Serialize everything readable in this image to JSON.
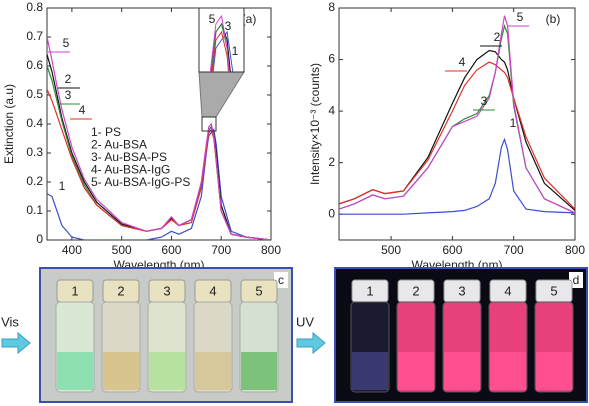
{
  "charts": [
    {
      "type": "line",
      "panel": "(a)",
      "x_label": "Wavelength (nm)",
      "y_label": "Extinction (a.u)",
      "xlim": [
        350,
        800
      ],
      "xticks": [
        400,
        500,
        600,
        700,
        800
      ],
      "ylim": [
        0,
        0.8
      ],
      "yticks": [
        0,
        0.1,
        0.2,
        0.3,
        0.4,
        0.5,
        0.6,
        0.7,
        0.8
      ],
      "x": [
        350,
        360,
        370,
        380,
        400,
        425,
        450,
        500,
        550,
        580,
        600,
        615,
        640,
        660,
        670,
        675,
        680,
        685,
        690,
        700,
        720,
        750,
        800
      ],
      "series": [
        {
          "name": "1- PS",
          "tag": "1",
          "color": "#3a4fd0",
          "values": [
            0.16,
            0.15,
            0.1,
            0.05,
            0.01,
            0,
            0,
            0,
            0,
            0.01,
            0.03,
            0.02,
            0.04,
            0.15,
            0.3,
            0.36,
            0.37,
            0.38,
            0.33,
            0.15,
            0.03,
            0.01,
            0
          ]
        },
        {
          "name": "2- Au-BSA",
          "tag": "2",
          "color": "#111111",
          "values": [
            0.64,
            0.58,
            0.5,
            0.42,
            0.3,
            0.2,
            0.13,
            0.055,
            0.03,
            0.04,
            0.075,
            0.05,
            0.07,
            0.19,
            0.32,
            0.38,
            0.39,
            0.37,
            0.3,
            0.12,
            0.02,
            0.01,
            0
          ]
        },
        {
          "name": "3- Au-BSA-PS",
          "tag": "3",
          "color": "#2e8b3a",
          "values": [
            0.6,
            0.55,
            0.48,
            0.41,
            0.29,
            0.19,
            0.12,
            0.05,
            0.03,
            0.04,
            0.07,
            0.05,
            0.07,
            0.19,
            0.32,
            0.38,
            0.39,
            0.36,
            0.28,
            0.1,
            0.02,
            0.01,
            0
          ]
        },
        {
          "name": "4- Au-BSA-IgG",
          "tag": "4",
          "color": "#e0302a",
          "values": [
            0.52,
            0.48,
            0.43,
            0.38,
            0.28,
            0.18,
            0.12,
            0.05,
            0.03,
            0.04,
            0.07,
            0.05,
            0.06,
            0.18,
            0.31,
            0.37,
            0.38,
            0.35,
            0.27,
            0.1,
            0.02,
            0.01,
            0
          ]
        },
        {
          "name": "5- Au-BSA-IgG-PS",
          "tag": "5",
          "color": "#cc44cc",
          "values": [
            0.7,
            0.62,
            0.53,
            0.45,
            0.32,
            0.21,
            0.14,
            0.06,
            0.03,
            0.04,
            0.08,
            0.05,
            0.07,
            0.2,
            0.33,
            0.39,
            0.4,
            0.36,
            0.28,
            0.1,
            0.02,
            0.01,
            0
          ]
        }
      ],
      "inset": {
        "xlim": [
          660,
          700
        ],
        "ylim": [
          0.33,
          0.41
        ],
        "labels": [
          "5",
          "3",
          "1"
        ]
      }
    },
    {
      "type": "line",
      "panel": "(b)",
      "x_label": "Wavelength (nm)",
      "y_label": "Intensity×10⁻³ (counts)",
      "xlim": [
        415,
        800
      ],
      "xticks": [
        500,
        600,
        700,
        800
      ],
      "ylim": [
        -1,
        8
      ],
      "yticks": [
        0,
        2,
        4,
        6,
        8
      ],
      "x": [
        415,
        440,
        470,
        490,
        520,
        560,
        600,
        620,
        640,
        660,
        670,
        680,
        685,
        690,
        700,
        720,
        750,
        800
      ],
      "series": [
        {
          "name": "1",
          "color": "#3a4fd0",
          "values": [
            0,
            0,
            0,
            0,
            0,
            0.05,
            0.1,
            0.15,
            0.3,
            0.6,
            1.2,
            2.6,
            2.9,
            2.5,
            0.9,
            0.2,
            0.1,
            0.05
          ]
        },
        {
          "name": "2",
          "color": "#111111",
          "values": [
            0.4,
            0.6,
            0.95,
            0.8,
            0.9,
            2.2,
            4.3,
            5.3,
            6.0,
            6.35,
            6.3,
            6.0,
            5.9,
            5.6,
            4.5,
            2.8,
            1.2,
            0.15
          ]
        },
        {
          "name": "3",
          "color": "#2e8b3a",
          "values": [
            0.2,
            0.4,
            0.75,
            0.6,
            0.7,
            1.8,
            3.4,
            3.7,
            3.9,
            4.6,
            5.5,
            6.8,
            7.3,
            7.0,
            4.2,
            1.8,
            0.6,
            0.05
          ]
        },
        {
          "name": "4",
          "color": "#e0302a",
          "values": [
            0.4,
            0.6,
            0.95,
            0.8,
            0.9,
            2.1,
            4.0,
            5.0,
            5.6,
            5.9,
            5.8,
            5.6,
            5.5,
            5.3,
            4.5,
            3.0,
            1.4,
            0.2
          ]
        },
        {
          "name": "5",
          "color": "#cc44cc",
          "values": [
            0.2,
            0.4,
            0.75,
            0.6,
            0.7,
            1.8,
            3.4,
            3.6,
            3.8,
            4.5,
            5.5,
            7.0,
            7.7,
            7.3,
            4.3,
            1.8,
            0.6,
            0.05
          ]
        }
      ]
    }
  ],
  "photos": [
    {
      "label": "Vis",
      "panel": "c",
      "vials": [
        "1",
        "2",
        "3",
        "4",
        "5"
      ]
    },
    {
      "label": "UV",
      "panel": "d",
      "vials": [
        "1",
        "2",
        "3",
        "4",
        "5"
      ]
    }
  ]
}
